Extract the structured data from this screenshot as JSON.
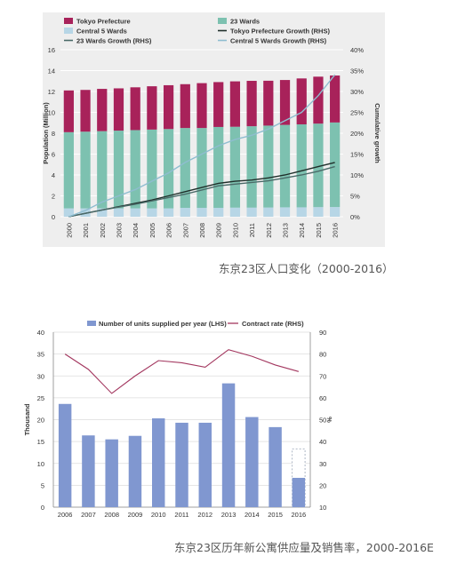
{
  "chart_data": [
    {
      "type": "bar",
      "caption": "东京23区人口变化（2000-2016）",
      "categories": [
        "2000",
        "2001",
        "2002",
        "2003",
        "2004",
        "2005",
        "2006",
        "2007",
        "2008",
        "2009",
        "2010",
        "2011",
        "2012",
        "2013",
        "2014",
        "2015",
        "2016"
      ],
      "series": [
        {
          "name": "Central 5 Wards",
          "kind": "bar-stack",
          "axis": "left",
          "color": "#b7d6e6",
          "values": [
            0.8,
            0.8,
            0.8,
            0.8,
            0.8,
            0.8,
            0.8,
            0.85,
            0.85,
            0.85,
            0.87,
            0.87,
            0.88,
            0.9,
            0.9,
            0.92,
            0.93
          ]
        },
        {
          "name": "23 Wards",
          "kind": "bar-stack",
          "axis": "left",
          "color": "#7dc1b0",
          "values": [
            7.3,
            7.35,
            7.4,
            7.45,
            7.5,
            7.55,
            7.6,
            7.65,
            7.65,
            7.75,
            7.75,
            7.8,
            7.85,
            7.9,
            7.95,
            8.0,
            8.1
          ]
        },
        {
          "name": "Tokyo Prefecture",
          "kind": "bar-stack",
          "axis": "left",
          "color": "#a8225a",
          "values": [
            4.0,
            4.0,
            4.05,
            4.05,
            4.1,
            4.15,
            4.2,
            4.2,
            4.3,
            4.3,
            4.35,
            4.35,
            4.3,
            4.3,
            4.4,
            4.5,
            4.5
          ]
        },
        {
          "name": "Tokyo Prefecture Growth (RHS)",
          "kind": "line",
          "axis": "right",
          "color": "#1f2f2a",
          "values": [
            0,
            0.8,
            1.6,
            2.4,
            3.2,
            4,
            5,
            6,
            7,
            8,
            8.5,
            8.8,
            9.3,
            10,
            11,
            12,
            13
          ]
        },
        {
          "name": "23 Wards Growth (RHS)",
          "kind": "line",
          "axis": "right",
          "color": "#4a6a68",
          "values": [
            0,
            0.8,
            1.6,
            2.3,
            3.0,
            3.8,
            4.6,
            5.4,
            6.4,
            7.4,
            7.8,
            8.2,
            8.6,
            9.3,
            10,
            10.9,
            12
          ]
        },
        {
          "name": "Central 5 Wards Growth (RHS)",
          "kind": "line",
          "axis": "right",
          "color": "#8fbdd0",
          "values": [
            0,
            1.5,
            3.5,
            5,
            6.5,
            8.5,
            10.5,
            13,
            15,
            17,
            18.5,
            19.5,
            21,
            23,
            25,
            29,
            34
          ]
        }
      ],
      "ylabel": "Population (Million)",
      "ylim": [
        0,
        16
      ],
      "yticks": [
        "0",
        "2",
        "4",
        "6",
        "8",
        "10",
        "12",
        "14",
        "16"
      ],
      "y2label": "Cumulative growth",
      "y2lim": [
        0,
        40
      ],
      "y2ticks": [
        "0%",
        "5%",
        "10%",
        "15%",
        "20%",
        "25%",
        "30%",
        "35%",
        "40%"
      ],
      "legend_position": "top",
      "grid": true
    },
    {
      "type": "bar",
      "caption": "东京23区历年新公寓供应量及销售率，2000-2016E",
      "categories": [
        "2006",
        "2007",
        "2008",
        "2009",
        "2010",
        "2011",
        "2012",
        "2013",
        "2014",
        "2015",
        "2016"
      ],
      "series": [
        {
          "name": "Number of units supplied per year (LHS)",
          "kind": "bar",
          "axis": "left",
          "color": "#8097d0",
          "values": [
            23.6,
            16.4,
            15.5,
            16.3,
            20.3,
            19.3,
            19.3,
            28.3,
            20.6,
            18.3,
            6.7
          ],
          "projected_total_2016": 13.3
        },
        {
          "name": "Contract rate (RHS)",
          "kind": "line",
          "axis": "right",
          "color": "#a3375f",
          "values": [
            80,
            73,
            62,
            70,
            77,
            76,
            74,
            82,
            79,
            75,
            72
          ]
        }
      ],
      "ylabel": "Thousand",
      "ylim": [
        0,
        40
      ],
      "yticks": [
        "0",
        "5",
        "10",
        "15",
        "20",
        "25",
        "30",
        "35",
        "40"
      ],
      "y2label": "%",
      "y2lim": [
        10,
        90
      ],
      "y2ticks": [
        "10",
        "20",
        "30",
        "40",
        "50",
        "60",
        "70",
        "80",
        "90"
      ],
      "legend_position": "top",
      "grid": true
    }
  ]
}
